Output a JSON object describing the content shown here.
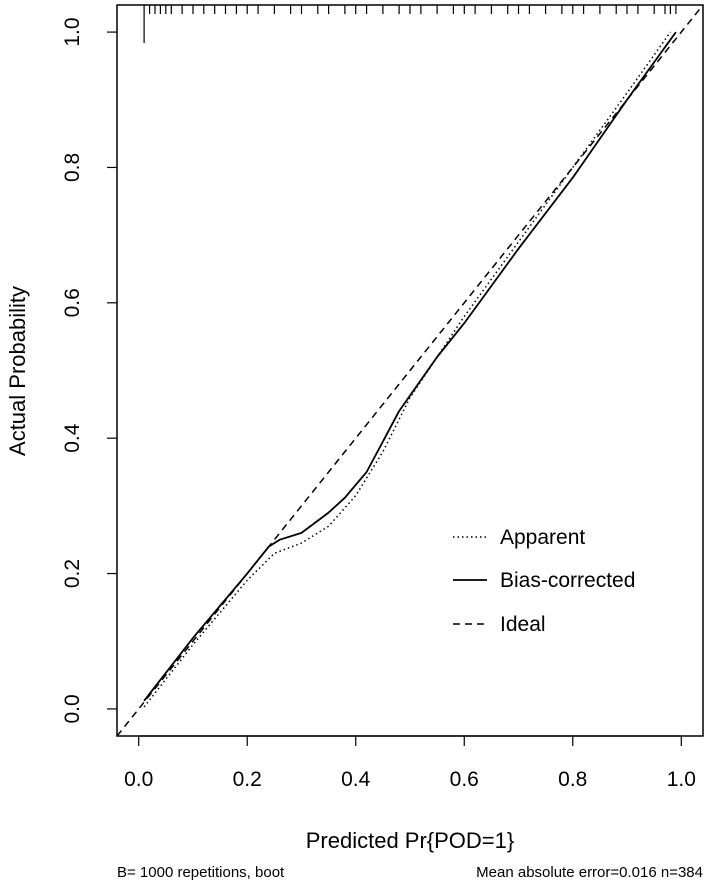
{
  "chart_data": {
    "type": "line",
    "xlabel": "Predicted Pr{POD=1}",
    "ylabel": "Actual Probability",
    "xlim": [
      -0.04,
      1.04
    ],
    "ylim": [
      -0.04,
      1.04
    ],
    "x_ticks": [
      0.0,
      0.2,
      0.4,
      0.6,
      0.8,
      1.0
    ],
    "y_ticks": [
      0.0,
      0.2,
      0.4,
      0.6,
      0.8,
      1.0
    ],
    "x_tick_labels": [
      "0.0",
      "0.2",
      "0.4",
      "0.6",
      "0.8",
      "1.0"
    ],
    "y_tick_labels": [
      "0.0",
      "0.2",
      "0.4",
      "0.6",
      "0.8",
      "1.0"
    ],
    "grid": false,
    "legend_position": "bottom-right",
    "series": [
      {
        "name": "Apparent",
        "line_style": "dotted",
        "x": [
          0.01,
          0.1,
          0.2,
          0.25,
          0.3,
          0.35,
          0.4,
          0.45,
          0.5,
          0.6,
          0.7,
          0.8,
          0.9,
          0.98
        ],
        "y": [
          0.003,
          0.095,
          0.19,
          0.23,
          0.245,
          0.27,
          0.315,
          0.38,
          0.46,
          0.58,
          0.69,
          0.8,
          0.91,
          1.0
        ]
      },
      {
        "name": "Bias-corrected",
        "line_style": "solid",
        "x": [
          0.01,
          0.1,
          0.2,
          0.24,
          0.26,
          0.3,
          0.35,
          0.38,
          0.42,
          0.45,
          0.48,
          0.55,
          0.6,
          0.7,
          0.8,
          0.9,
          0.99
        ],
        "y": [
          0.012,
          0.105,
          0.2,
          0.24,
          0.25,
          0.26,
          0.29,
          0.312,
          0.35,
          0.395,
          0.44,
          0.52,
          0.57,
          0.68,
          0.785,
          0.9,
          1.0
        ]
      },
      {
        "name": "Ideal",
        "line_style": "dashed",
        "x": [
          -0.04,
          1.04
        ],
        "y": [
          -0.04,
          1.04
        ]
      }
    ],
    "rug": {
      "y": 1.04,
      "x": [
        0.01,
        0.02,
        0.03,
        0.04,
        0.05,
        0.06,
        0.08,
        0.1,
        0.12,
        0.14,
        0.16,
        0.18,
        0.2,
        0.22,
        0.25,
        0.28,
        0.3,
        0.33,
        0.35,
        0.38,
        0.4,
        0.42,
        0.45,
        0.48,
        0.5,
        0.52,
        0.55,
        0.58,
        0.6,
        0.62,
        0.65,
        0.68,
        0.7,
        0.72,
        0.75,
        0.78,
        0.8,
        0.82,
        0.85,
        0.88,
        0.9,
        0.92,
        0.95,
        0.97,
        0.98,
        0.99
      ],
      "tall_x": 0.01
    },
    "footer_left": "B= 1000 repetitions, boot",
    "footer_right": "Mean absolute error=0.016 n=384"
  }
}
